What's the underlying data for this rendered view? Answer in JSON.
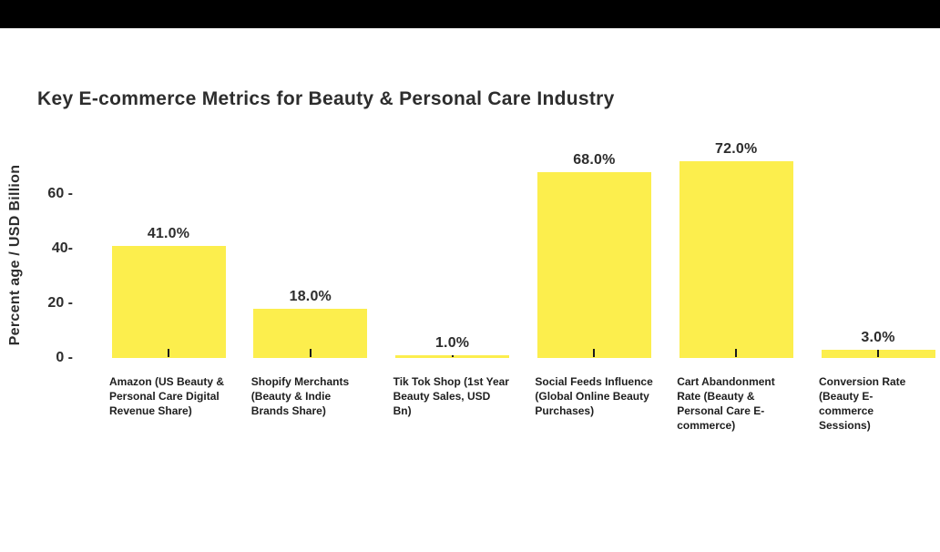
{
  "page": {
    "background": "#ffffff",
    "top_bar_color": "#000000"
  },
  "chart_data": {
    "type": "bar",
    "title": "Key E-commerce Metrics for Beauty & Personal Care Industry",
    "ylabel": "Percent age / USD Billion",
    "xlabel": "",
    "grid": false,
    "legend": false,
    "ylim": [
      0,
      77
    ],
    "bar_color": "#FCEE4D",
    "tick_mark_color": "#1b1b1b",
    "text_color": "#2d2d2d",
    "categories": [
      "Amazon (US Beauty & Personal Care Digital Revenue Share)",
      "Shopify Merchants (Beauty & Indie Brands Share)",
      "Tik Tok Shop (1st Year Beauty Sales, USD Bn)",
      "Social Feeds Influence (Global Online Beauty Purchases)",
      "Cart Abandonment Rate (Beauty & Personal Care E-commerce)",
      "Conversion Rate (Beauty E-commerce Sessions)"
    ],
    "category_lines": [
      [
        "Amazon (US Beauty &",
        "Personal Care Digital",
        "Revenue Share)"
      ],
      [
        "Shopify Merchants",
        "(Beauty & Indie",
        "Brands Share)"
      ],
      [
        "Tik Tok Shop (1st Year",
        "Beauty Sales, USD",
        "Bn)"
      ],
      [
        "Social Feeds Influence",
        "(Global Online Beauty",
        "Purchases)"
      ],
      [
        "Cart Abandonment",
        "Rate (Beauty &",
        "Personal Care E-",
        "commerce)"
      ],
      [
        "Conversion Rate",
        "(Beauty E-",
        "commerce",
        "Sessions)"
      ]
    ],
    "values": [
      41,
      18,
      1,
      68,
      72,
      3
    ],
    "value_labels": [
      "41.0%",
      "18.0%",
      "1.0%",
      "68.0%",
      "72.0%",
      "3.0%"
    ],
    "y_ticks": [
      {
        "value": 60,
        "label": "60 -"
      },
      {
        "value": 40,
        "label": "40-"
      },
      {
        "value": 20,
        "label": "20 -"
      },
      {
        "value": 0,
        "label": "0 -"
      }
    ]
  }
}
